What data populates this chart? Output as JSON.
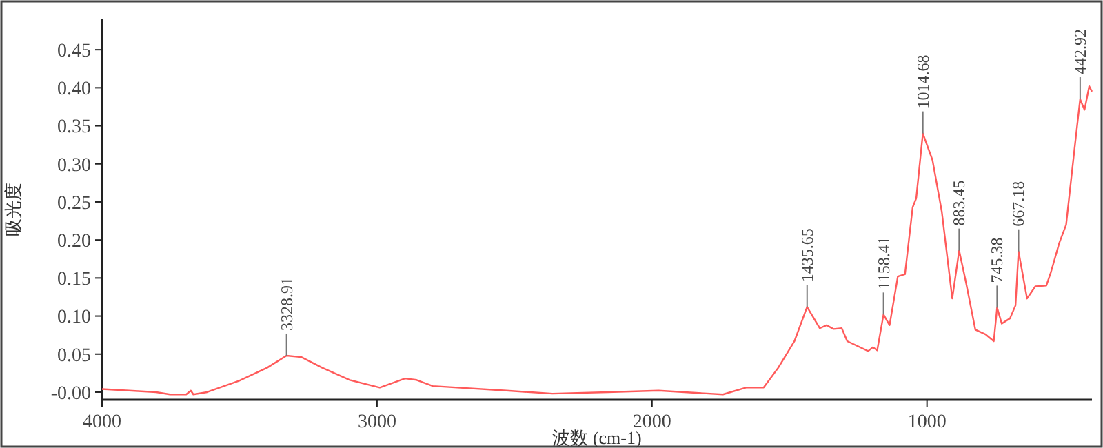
{
  "chart_data": {
    "type": "line",
    "xlabel": "波数 (cm-1)",
    "ylabel": "吸光度",
    "x": [
      4000,
      3803,
      3753,
      3694,
      3677,
      3668,
      3618,
      3501,
      3400,
      3329,
      3275,
      3199,
      3099,
      2990,
      2898,
      2856,
      2797,
      2529,
      2362,
      2161,
      1976,
      1742,
      1658,
      1594,
      1541,
      1482,
      1436,
      1390,
      1365,
      1340,
      1310,
      1290,
      1214,
      1197,
      1181,
      1158,
      1136,
      1106,
      1080,
      1052,
      1039,
      1015,
      980,
      946,
      908,
      883,
      858,
      824,
      787,
      757,
      745,
      728,
      698,
      678,
      667,
      636,
      606,
      566,
      549,
      519,
      494,
      460,
      443,
      427,
      410,
      400
    ],
    "series": [
      {
        "color": "#ff5a5a",
        "values": [
          0.004,
          0.0,
          -0.003,
          -0.003,
          0.002,
          -0.003,
          0.0,
          0.015,
          0.032,
          0.048,
          0.046,
          0.032,
          0.016,
          0.006,
          0.018,
          0.016,
          0.008,
          0.002,
          -0.002,
          0.0,
          0.002,
          -0.003,
          0.006,
          0.006,
          0.032,
          0.067,
          0.112,
          0.084,
          0.088,
          0.083,
          0.084,
          0.067,
          0.054,
          0.059,
          0.055,
          0.102,
          0.088,
          0.152,
          0.155,
          0.243,
          0.255,
          0.34,
          0.305,
          0.237,
          0.123,
          0.186,
          0.144,
          0.082,
          0.076,
          0.067,
          0.111,
          0.09,
          0.097,
          0.114,
          0.185,
          0.123,
          0.139,
          0.14,
          0.158,
          0.196,
          0.22,
          0.331,
          0.385,
          0.371,
          0.402,
          0.395
        ]
      }
    ],
    "xlim": [
      4000,
      400
    ],
    "ylim": [
      -0.01,
      0.49
    ],
    "xticks": [
      4000,
      3000,
      2000,
      1000
    ],
    "yticks": [
      {
        "value": 0,
        "label": "-0.00"
      },
      0.05,
      {
        "value": 0.1,
        "label": "0.10"
      },
      0.15,
      {
        "value": 0.2,
        "label": "0.20"
      },
      0.25,
      {
        "value": 0.3,
        "label": "0.30"
      },
      0.35,
      {
        "value": 0.4,
        "label": "0.40"
      },
      0.45
    ],
    "annotations": [
      {
        "text": "3328.91",
        "x": 3329,
        "y": 0.048
      },
      {
        "text": "1435.65",
        "x": 1436,
        "y": 0.112
      },
      {
        "text": "1158.41",
        "x": 1158,
        "y": 0.102
      },
      {
        "text": "1014.68",
        "x": 1015,
        "y": 0.34
      },
      {
        "text": "883.45",
        "x": 883,
        "y": 0.186
      },
      {
        "text": "745.38",
        "x": 745,
        "y": 0.111
      },
      {
        "text": "667.18",
        "x": 667,
        "y": 0.185
      },
      {
        "text": "442.92",
        "x": 443,
        "y": 0.385
      }
    ],
    "grid": false,
    "marker": "none",
    "line_style": "solid"
  }
}
